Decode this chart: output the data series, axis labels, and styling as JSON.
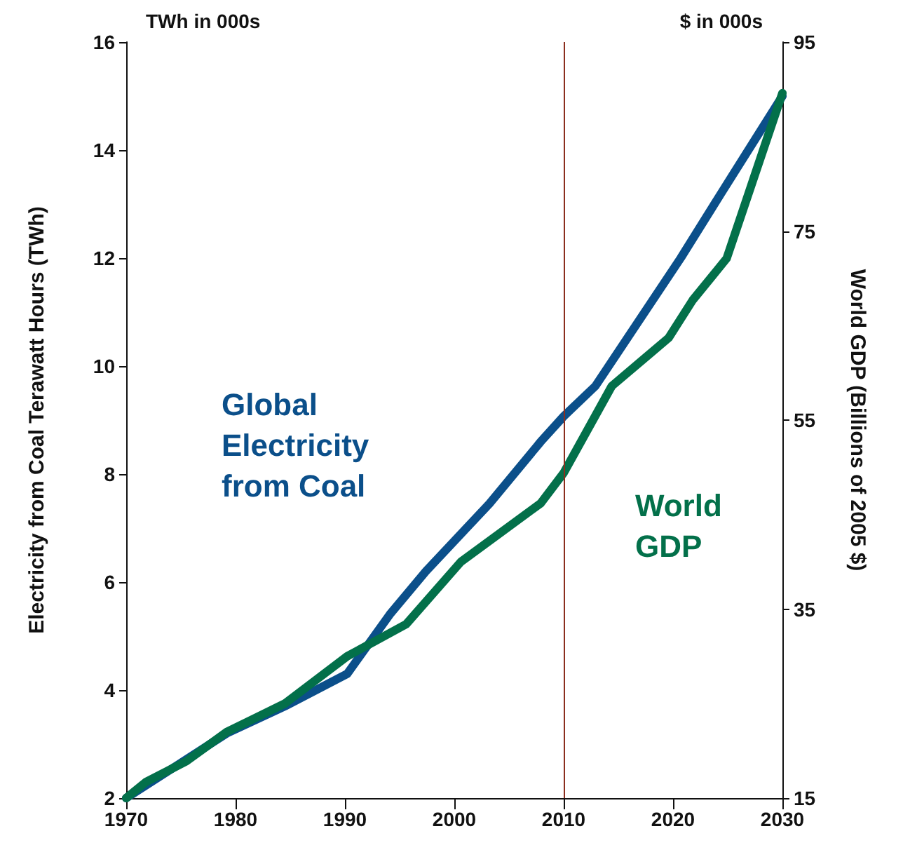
{
  "chart_data": {
    "type": "line",
    "ylabel": "Electricity from Coal Terawatt Hours (TWh)",
    "y2label": "World GDP (Billions of 2005 $)",
    "annotations": [
      "TWh in 000s",
      "$ in 000s"
    ],
    "xlim": [
      1970,
      2030
    ],
    "xticks": [
      1970,
      1980,
      1990,
      2000,
      2010,
      2020,
      2030
    ],
    "ylim": [
      2,
      16
    ],
    "yticks": [
      2,
      4,
      6,
      8,
      10,
      12,
      14,
      16
    ],
    "y2lim": [
      15,
      95
    ],
    "y2ticks": [
      15,
      35,
      55,
      75,
      95
    ],
    "grid": false,
    "legend": false,
    "marker": "none",
    "line_style": "solid",
    "ref_lines": [
      {
        "axis": "x",
        "value": 2010,
        "label": null,
        "color": "#8b2e1e"
      }
    ],
    "series": [
      {
        "name": "Global Electricity from Coal",
        "color": "#0b4f8a",
        "x": [
          1970,
          1979.2,
          1984.5,
          1990.2,
          1994.1,
          1997.4,
          2003.2,
          2007.9,
          2010,
          2012.9,
          2020.7,
          2024.4,
          2030
        ],
        "values": [
          2.0,
          3.2,
          3.7,
          4.3,
          5.4,
          6.2,
          7.45,
          8.6,
          9.07,
          9.63,
          12.0,
          13.2,
          15.0
        ]
      },
      {
        "name": "World GDP",
        "color": "#03704a",
        "axis": "y2",
        "x": [
          1970,
          1971.8,
          1975.5,
          1979.2,
          1984.5,
          1990.2,
          1995.6,
          2000.6,
          2007.9,
          2010,
          2014.4,
          2019.6,
          2021.8,
          2024.9,
          2030
        ],
        "values": [
          15,
          16.7,
          18.9,
          22.0,
          25.0,
          30.0,
          33.4,
          40.0,
          46.2,
          49.4,
          58.6,
          63.7,
          67.7,
          72.1,
          89.6
        ]
      }
    ]
  }
}
